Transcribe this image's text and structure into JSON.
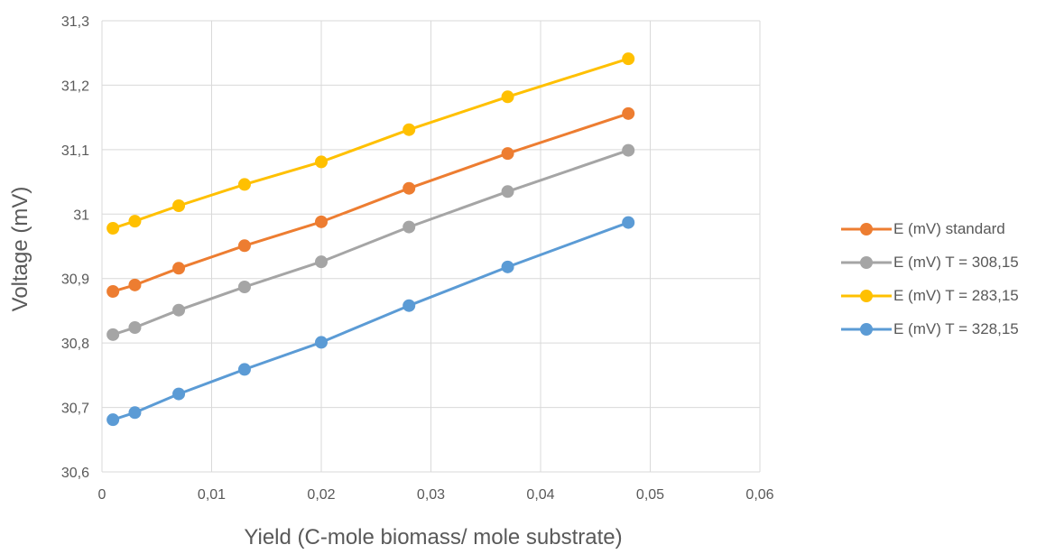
{
  "chart_data": {
    "type": "line",
    "xlabel": "Yield (C-mole biomass/ mole substrate)",
    "ylabel": "Voltage (mV)",
    "xlim": [
      0,
      0.06
    ],
    "ylim": [
      30.6,
      31.3
    ],
    "x_ticks": [
      "0",
      "0,01",
      "0,02",
      "0,03",
      "0,04",
      "0,05",
      "0,06"
    ],
    "x_tick_values": [
      0,
      0.01,
      0.02,
      0.03,
      0.04,
      0.05,
      0.06
    ],
    "y_ticks": [
      "30,6",
      "30,7",
      "30,8",
      "30,9",
      "31",
      "31,1",
      "31,2",
      "31,3"
    ],
    "y_tick_values": [
      30.6,
      30.7,
      30.8,
      30.9,
      31.0,
      31.1,
      31.2,
      31.3
    ],
    "grid": true,
    "legend_position": "right",
    "x": [
      0.001,
      0.003,
      0.007,
      0.013,
      0.02,
      0.028,
      0.037,
      0.048
    ],
    "series": [
      {
        "name": "E (mV) standard",
        "color": "#ED7D31",
        "values": [
          30.88,
          30.89,
          30.916,
          30.951,
          30.988,
          31.04,
          31.094,
          31.156
        ]
      },
      {
        "name": "E (mV) T = 308,15",
        "color": "#A5A5A5",
        "values": [
          30.813,
          30.824,
          30.851,
          30.887,
          30.926,
          30.98,
          31.035,
          31.099
        ]
      },
      {
        "name": "E (mV) T = 283,15",
        "color": "#FFC000",
        "values": [
          30.978,
          30.989,
          31.013,
          31.046,
          31.081,
          31.131,
          31.182,
          31.241
        ]
      },
      {
        "name": "E (mV) T = 328,15",
        "color": "#5B9BD5",
        "values": [
          30.681,
          30.692,
          30.721,
          30.759,
          30.801,
          30.858,
          30.918,
          30.987
        ]
      }
    ]
  }
}
